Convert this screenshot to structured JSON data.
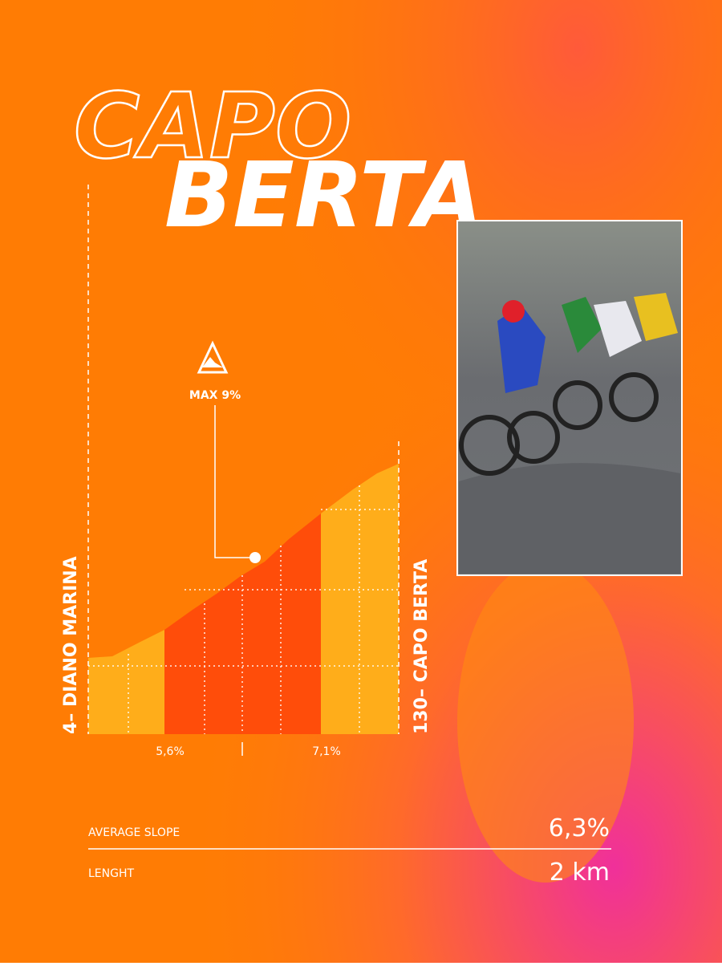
{
  "header": {
    "title_line1": "CAPO",
    "title_line2": "BERTA"
  },
  "profile": {
    "max_label": "MAX 9%",
    "start_label": "4– DIANO MARINA",
    "end_label": "130– CAPO BERTA",
    "segment_labels": [
      "5,6%",
      "7,1%"
    ]
  },
  "stats": [
    {
      "label": "AVERAGE SLOPE",
      "value": "6,3%"
    },
    {
      "label": "LENGHT",
      "value": "2 km"
    }
  ]
}
